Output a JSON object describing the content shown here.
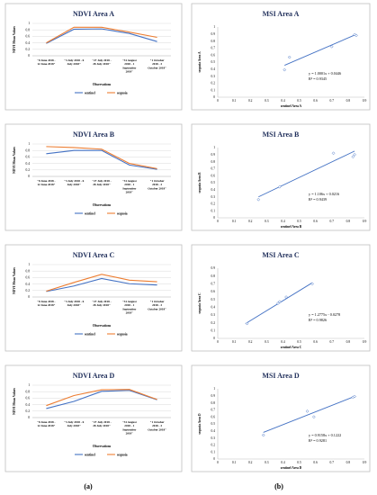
{
  "captions": [
    "(a)",
    "(b)"
  ],
  "chart_data": [
    {
      "type": "line",
      "title": "NDVI Area A",
      "xlabel": "Observations",
      "ylabel": "NDVI Mean Values",
      "ylim": [
        0,
        1
      ],
      "yticks": [
        "0",
        "0.2",
        "0.4",
        "0.6",
        "0.8",
        "1"
      ],
      "categories": [
        [
          "\"8 June 2018 -",
          "12 June 2018\""
        ],
        [
          "\"3 July 2018 - 6",
          "July 2018\""
        ],
        [
          "\"27 July 2018 -",
          "28 July 2018\""
        ],
        [
          "\"31 August",
          "2018 - 1",
          "September",
          "2018\""
        ],
        [
          "\"1 October",
          "2018 - 3",
          "October 2018\""
        ]
      ],
      "series": [
        {
          "name": "sentinel",
          "color": "#4472c4",
          "values": [
            0.38,
            0.82,
            0.83,
            0.69,
            0.44
          ]
        },
        {
          "name": "sequoia",
          "color": "#ed7d31",
          "values": [
            0.4,
            0.88,
            0.88,
            0.73,
            0.57
          ]
        }
      ],
      "legend": "bottom"
    },
    {
      "type": "scatter",
      "title": "MSI Area A",
      "xlabel": "sentinel Area A",
      "ylabel": "sequoia Area A",
      "xlim": [
        0,
        0.9
      ],
      "ylim": [
        0,
        1
      ],
      "xticks": [
        "0",
        "0.1",
        "0.2",
        "0.3",
        "0.4",
        "0.5",
        "0.6",
        "0.7",
        "0.8",
        "0.9"
      ],
      "yticks": [
        "0",
        "0.1",
        "0.2",
        "0.3",
        "0.4",
        "0.5",
        "0.6",
        "0.7",
        "0.8",
        "0.9",
        "1"
      ],
      "points": [
        [
          0.41,
          0.39
        ],
        [
          0.44,
          0.57
        ],
        [
          0.7,
          0.72
        ],
        [
          0.84,
          0.89
        ],
        [
          0.85,
          0.88
        ]
      ],
      "trend": {
        "slope": 1.0001,
        "intercept": 0.0446,
        "x_range": [
          0.41,
          0.85
        ]
      },
      "equation": "y = 1.0001x + 0.0446",
      "r2": "R² = 0.9345",
      "point_color": "#4472c4"
    },
    {
      "type": "line",
      "title": "NDVI Area B",
      "xlabel": "Observations",
      "ylabel": "NDVI Mean Values",
      "ylim": [
        0,
        1
      ],
      "yticks": [
        "0",
        "0.2",
        "0.4",
        "0.6",
        "0.8",
        "1"
      ],
      "categories": [
        [
          "\"8 June 2018 -",
          "12 June 2018\""
        ],
        [
          "\"3 July 2018 - 6",
          "July 2018\""
        ],
        [
          "\"27 July 2018 -",
          "28 July 2018\""
        ],
        [
          "\"31 August",
          "2018 - 1",
          "September",
          "2018\""
        ],
        [
          "\"1 October",
          "2018 - 3",
          "October 2018\""
        ]
      ],
      "series": [
        {
          "name": "sentinel",
          "color": "#4472c4",
          "values": [
            0.7,
            0.8,
            0.8,
            0.35,
            0.22
          ]
        },
        {
          "name": "sequoia",
          "color": "#ed7d31",
          "values": [
            0.92,
            0.89,
            0.84,
            0.4,
            0.24
          ]
        }
      ],
      "legend": "bottom"
    },
    {
      "type": "scatter",
      "title": "MSI Area B",
      "xlabel": "sentinel Area B",
      "ylabel": "sequoia Area B",
      "xlim": [
        0,
        0.9
      ],
      "ylim": [
        0,
        1
      ],
      "xticks": [
        "0",
        "0.1",
        "0.2",
        "0.3",
        "0.4",
        "0.5",
        "0.6",
        "0.7",
        "0.8",
        "0.9"
      ],
      "yticks": [
        "0",
        "0.1",
        "0.2",
        "0.3",
        "0.4",
        "0.5",
        "0.6",
        "0.7",
        "0.8",
        "0.9",
        "1"
      ],
      "points": [
        [
          0.25,
          0.26
        ],
        [
          0.38,
          0.44
        ],
        [
          0.71,
          0.92
        ],
        [
          0.83,
          0.87
        ],
        [
          0.84,
          0.9
        ]
      ],
      "trend": {
        "slope": 1.106,
        "intercept": 0.0216,
        "x_range": [
          0.25,
          0.84
        ]
      },
      "equation": "y = 1.106x + 0.0216",
      "r2": "R² = 0.9439",
      "point_color": "#4472c4"
    },
    {
      "type": "line",
      "title": "NDVI Area C",
      "xlabel": "Observations",
      "ylabel": "NDVI Mean Values",
      "ylim": [
        0,
        1
      ],
      "yticks": [
        "0",
        "0.2",
        "0.4",
        "0.6",
        "0.8",
        "1"
      ],
      "categories": [
        [
          "\"8 June 2018 -",
          "12 June 2018\""
        ],
        [
          "\"3 July 2018 - 6",
          "July 2018\""
        ],
        [
          "\"27 July 2018 -",
          "28 July 2018\""
        ],
        [
          "\"31 August",
          "2018 - 1",
          "September",
          "2018\""
        ],
        [
          "\"1 October",
          "2018 - 3",
          "October 2018\""
        ]
      ],
      "series": [
        {
          "name": "sentinel",
          "color": "#4472c4",
          "values": [
            0.17,
            0.34,
            0.57,
            0.41,
            0.37
          ]
        },
        {
          "name": "sequoia",
          "color": "#ed7d31",
          "values": [
            0.18,
            0.45,
            0.7,
            0.52,
            0.47
          ]
        }
      ],
      "legend": "bottom"
    },
    {
      "type": "scatter",
      "title": "MSI Area C",
      "xlabel": "sentinel Area C",
      "ylabel": "sequoia Area C",
      "xlim": [
        0,
        0.9
      ],
      "ylim": [
        0,
        0.9
      ],
      "xticks": [
        "0",
        "0.1",
        "0.2",
        "0.3",
        "0.4",
        "0.5",
        "0.6",
        "0.7",
        "0.8",
        "0.9"
      ],
      "yticks": [
        "0",
        "0.1",
        "0.2",
        "0.3",
        "0.4",
        "0.5",
        "0.6",
        "0.7",
        "0.8",
        "0.9"
      ],
      "points": [
        [
          0.18,
          0.19
        ],
        [
          0.37,
          0.45
        ],
        [
          0.38,
          0.47
        ],
        [
          0.42,
          0.53
        ],
        [
          0.58,
          0.7
        ]
      ],
      "trend": {
        "slope": 1.2775,
        "intercept": -0.0278,
        "x_range": [
          0.17,
          0.58
        ]
      },
      "equation": "y = 1.2775x - 0.0278",
      "r2": "R² = 0.9826",
      "point_color": "#4472c4"
    },
    {
      "type": "line",
      "title": "NDVI Area D",
      "xlabel": "Observations",
      "ylabel": "NDVI Mean Values",
      "ylim": [
        0,
        1
      ],
      "yticks": [
        "0",
        "0.2",
        "0.4",
        "0.6",
        "0.8",
        "1"
      ],
      "categories": [
        [
          "\"8 June 2018 -",
          "12 June 2018\""
        ],
        [
          "\"3 July 2018 - 6",
          "July 2018\""
        ],
        [
          "\"27 July 2018 -",
          "28 July 2018\""
        ],
        [
          "\"31 August",
          "2018 - 1",
          "September",
          "2018\""
        ],
        [
          "\"1 October",
          "2018 - 3",
          "October 2018\""
        ]
      ],
      "series": [
        {
          "name": "sentinel",
          "color": "#4472c4",
          "values": [
            0.28,
            0.5,
            0.81,
            0.84,
            0.55
          ]
        },
        {
          "name": "sequoia",
          "color": "#ed7d31",
          "values": [
            0.37,
            0.68,
            0.86,
            0.87,
            0.56
          ]
        }
      ],
      "legend": "bottom"
    },
    {
      "type": "scatter",
      "title": "MSI Area D",
      "xlabel": "sentinel Area D",
      "ylabel": "sequoia Area D",
      "xlim": [
        0,
        0.9
      ],
      "ylim": [
        0,
        1
      ],
      "xticks": [
        "0",
        "0.1",
        "0.2",
        "0.3",
        "0.4",
        "0.5",
        "0.6",
        "0.7",
        "0.8",
        "0.9"
      ],
      "yticks": [
        "0",
        "0.1",
        "0.2",
        "0.3",
        "0.4",
        "0.5",
        "0.6",
        "0.7",
        "0.8",
        "0.9",
        "1"
      ],
      "points": [
        [
          0.28,
          0.34
        ],
        [
          0.55,
          0.68
        ],
        [
          0.59,
          0.6
        ],
        [
          0.83,
          0.88
        ],
        [
          0.84,
          0.89
        ]
      ],
      "trend": {
        "slope": 0.9158,
        "intercept": 0.1222,
        "x_range": [
          0.28,
          0.84
        ]
      },
      "equation": "y = 0.9158x + 0.1222",
      "r2": "R² = 0.9281",
      "point_color": "#4472c4"
    }
  ]
}
